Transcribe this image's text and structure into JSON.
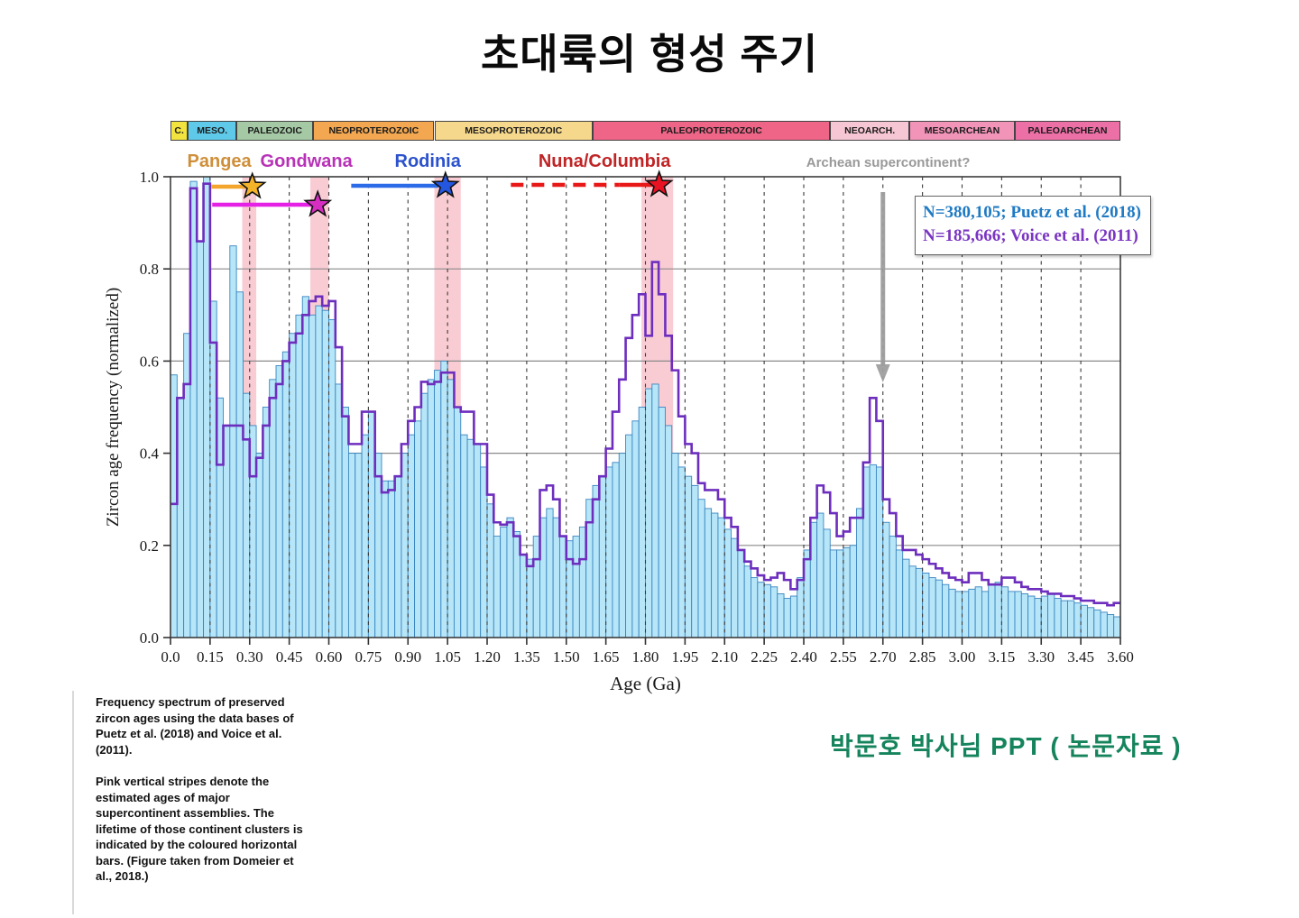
{
  "title": "초대륙의 형성 주기",
  "credit": "박문호 박사님 PPT   ( 논문자료 )",
  "caption": {
    "para1": "Frequency spectrum of preserved zircon ages using the data bases of Puetz et al. (2018) and Voice et al. (2011).",
    "para2": "Pink vertical stripes denote the estimated ages of major supercontinent assemblies. The lifetime of those continent clusters is indicated by the coloured horizontal bars. (Figure taken from Domeier et al., 2018.)"
  },
  "era_bar": [
    {
      "label": "C.",
      "from": 0.0,
      "to": 0.066,
      "color": "#f2e33e"
    },
    {
      "label": "MESO.",
      "from": 0.066,
      "to": 0.25,
      "color": "#5fc9e9"
    },
    {
      "label": "PALEOZOIC",
      "from": 0.25,
      "to": 0.541,
      "color": "#a5c9a5"
    },
    {
      "label": "NEOPROTEROZOIC",
      "from": 0.541,
      "to": 1.0,
      "color": "#f2a750"
    },
    {
      "label": "MESOPROTEROZOIC",
      "from": 1.0,
      "to": 1.6,
      "color": "#f6d88c"
    },
    {
      "label": "PALEOPROTEROZOIC",
      "from": 1.6,
      "to": 2.5,
      "color": "#ee6587"
    },
    {
      "label": "NEOARCH.",
      "from": 2.5,
      "to": 2.8,
      "color": "#f7c6d4"
    },
    {
      "label": "MESOARCHEAN",
      "from": 2.8,
      "to": 3.2,
      "color": "#f294b8"
    },
    {
      "label": "PALEOARCHEAN",
      "from": 3.2,
      "to": 3.6,
      "color": "#ec6fa6"
    }
  ],
  "supercontinents": [
    {
      "name": "Pangea",
      "text_color": "#cf8f3a",
      "line_color": "#f3a52c",
      "star_color": "#f5b32a",
      "label_ga": 0.185,
      "bar_from": 0.155,
      "bar_to": 0.295,
      "star_ga": 0.31,
      "dashed": false
    },
    {
      "name": "Gondwana",
      "text_color": "#b832b8",
      "line_color": "#e421e4",
      "star_color": "#d62ec0",
      "label_ga": 0.515,
      "bar_from": 0.158,
      "bar_to": 0.545,
      "star_ga": 0.558,
      "dashed": false
    },
    {
      "name": "Rodinia",
      "text_color": "#2b52cc",
      "line_color": "#2b6be8",
      "star_color": "#2456e0",
      "label_ga": 0.975,
      "bar_from": 0.685,
      "bar_to": 1.015,
      "star_ga": 1.042,
      "dashed": false
    },
    {
      "name": "Nuna/Columbia",
      "text_color": "#c02425",
      "line_color": "#e81818",
      "star_color": "#e81222",
      "label_ga": 1.645,
      "bar_from": 1.29,
      "bar_to": 1.7,
      "solid_from": 1.7,
      "solid_to": 1.835,
      "star_ga": 1.852,
      "dashed": true
    }
  ],
  "archean": {
    "label": "Archean supercontinent?",
    "color": "#999999",
    "arrow_ga": 2.7
  },
  "legend": {
    "entries": [
      {
        "text": "N=380,105; Puetz et al. (2018)",
        "color": "#1f7ac4"
      },
      {
        "text": "N=185,666; Voice et al. (2011)",
        "color": "#7a35c2"
      }
    ]
  },
  "chart_data": {
    "type": "bar",
    "subtype": "histogram-with-step-line",
    "xlabel": "Age (Ga)",
    "ylabel": "Zircon age frequency (normalized)",
    "xlim": [
      0,
      3.6
    ],
    "ylim": [
      0,
      1.0
    ],
    "grid": "horizontal-solid, vertical-dashed",
    "legend_position": "upper-right-inside",
    "x_tick_labels": [
      "0.0",
      "0.15",
      "0.30",
      "0.45",
      "0.60",
      "0.75",
      "0.90",
      "1.05",
      "1.20",
      "1.35",
      "1.50",
      "1.65",
      "1.80",
      "1.95",
      "2.10",
      "2.25",
      "2.40",
      "2.55",
      "2.70",
      "2.85",
      "3.00",
      "3.15",
      "3.30",
      "3.45",
      "3.60"
    ],
    "y_tick_labels": [
      "0.0",
      "0.2",
      "0.4",
      "0.6",
      "0.8",
      "1.0"
    ],
    "bin_width_ga": 0.025,
    "pink_stripes_ga": [
      [
        0.272,
        0.325
      ],
      [
        0.53,
        0.6
      ],
      [
        1.0,
        1.1
      ],
      [
        1.785,
        1.905
      ]
    ],
    "series": [
      {
        "name": "Puetz et al. (2018)",
        "n_label": "N=380,105",
        "render": "bars",
        "fill": "#b7e6f8",
        "stroke": "#3a85c0",
        "values": [
          0.57,
          0.52,
          0.66,
          0.99,
          0.86,
          1.0,
          0.73,
          0.52,
          0.46,
          0.85,
          0.75,
          0.53,
          0.46,
          0.4,
          0.5,
          0.56,
          0.59,
          0.62,
          0.66,
          0.7,
          0.74,
          0.7,
          0.72,
          0.71,
          0.69,
          0.55,
          0.5,
          0.4,
          0.4,
          0.44,
          0.49,
          0.4,
          0.34,
          0.34,
          0.35,
          0.4,
          0.44,
          0.47,
          0.53,
          0.56,
          0.58,
          0.6,
          0.56,
          0.5,
          0.44,
          0.43,
          0.42,
          0.37,
          0.29,
          0.22,
          0.24,
          0.26,
          0.23,
          0.18,
          0.17,
          0.22,
          0.26,
          0.28,
          0.26,
          0.22,
          0.21,
          0.22,
          0.24,
          0.3,
          0.33,
          0.35,
          0.37,
          0.38,
          0.4,
          0.44,
          0.47,
          0.5,
          0.54,
          0.55,
          0.5,
          0.46,
          0.4,
          0.37,
          0.35,
          0.33,
          0.3,
          0.28,
          0.27,
          0.26,
          0.235,
          0.215,
          0.19,
          0.155,
          0.13,
          0.12,
          0.115,
          0.11,
          0.095,
          0.085,
          0.09,
          0.13,
          0.19,
          0.25,
          0.27,
          0.235,
          0.19,
          0.19,
          0.195,
          0.2,
          0.28,
          0.37,
          0.375,
          0.37,
          0.25,
          0.22,
          0.19,
          0.17,
          0.155,
          0.15,
          0.14,
          0.13,
          0.125,
          0.115,
          0.105,
          0.1,
          0.1,
          0.105,
          0.11,
          0.1,
          0.115,
          0.12,
          0.11,
          0.1,
          0.1,
          0.095,
          0.09,
          0.085,
          0.09,
          0.095,
          0.085,
          0.08,
          0.08,
          0.075,
          0.07,
          0.065,
          0.06,
          0.055,
          0.05,
          0.045
        ]
      },
      {
        "name": "Voice et al. (2011)",
        "n_label": "N=185,666",
        "render": "step-line",
        "stroke": "#6d2ebe",
        "values": [
          0.29,
          0.52,
          0.55,
          0.975,
          0.86,
          0.985,
          0.64,
          0.375,
          0.46,
          0.46,
          0.46,
          0.43,
          0.35,
          0.39,
          0.46,
          0.52,
          0.55,
          0.6,
          0.64,
          0.66,
          0.7,
          0.73,
          0.74,
          0.72,
          0.73,
          0.63,
          0.48,
          0.42,
          0.42,
          0.49,
          0.49,
          0.35,
          0.315,
          0.32,
          0.35,
          0.42,
          0.47,
          0.5,
          0.555,
          0.55,
          0.555,
          0.575,
          0.575,
          0.5,
          0.49,
          0.49,
          0.42,
          0.42,
          0.31,
          0.25,
          0.245,
          0.25,
          0.22,
          0.18,
          0.155,
          0.17,
          0.32,
          0.33,
          0.3,
          0.22,
          0.17,
          0.16,
          0.17,
          0.25,
          0.3,
          0.35,
          0.41,
          0.49,
          0.56,
          0.65,
          0.7,
          0.745,
          0.655,
          0.815,
          0.745,
          0.655,
          0.58,
          0.48,
          0.42,
          0.4,
          0.335,
          0.32,
          0.32,
          0.3,
          0.26,
          0.24,
          0.19,
          0.165,
          0.15,
          0.135,
          0.125,
          0.13,
          0.14,
          0.125,
          0.105,
          0.125,
          0.17,
          0.26,
          0.33,
          0.315,
          0.27,
          0.22,
          0.23,
          0.26,
          0.26,
          0.38,
          0.52,
          0.47,
          0.3,
          0.27,
          0.22,
          0.19,
          0.19,
          0.18,
          0.17,
          0.16,
          0.15,
          0.14,
          0.13,
          0.125,
          0.12,
          0.14,
          0.14,
          0.125,
          0.115,
          0.115,
          0.13,
          0.13,
          0.12,
          0.11,
          0.105,
          0.105,
          0.1,
          0.095,
          0.095,
          0.09,
          0.09,
          0.085,
          0.08,
          0.08,
          0.075,
          0.075,
          0.07,
          0.075
        ]
      }
    ]
  }
}
